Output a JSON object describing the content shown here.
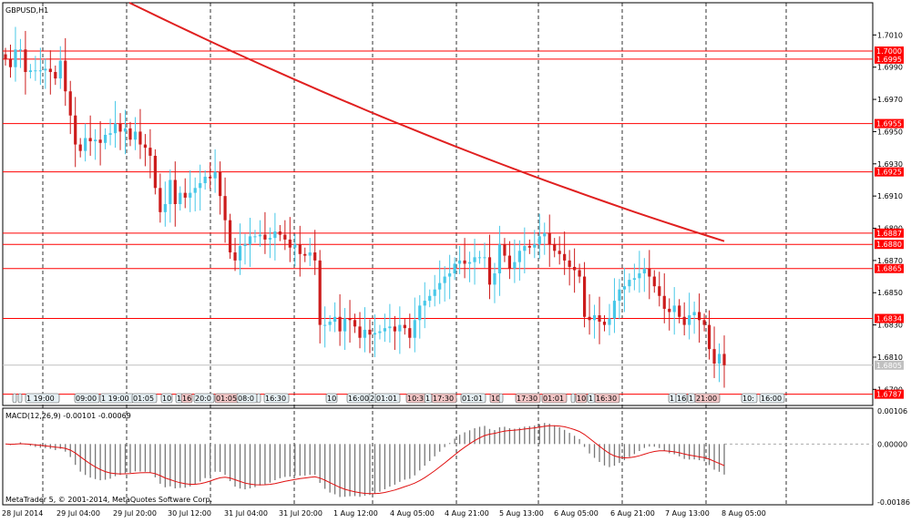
{
  "title": "GBPUSD,H1",
  "copyright": "MetaTrader 5, © 2001-2014, MetaQuotes Software Corp.",
  "chart_data": {
    "type": "candlestick",
    "symbol": "GBPUSD",
    "timeframe": "H1",
    "ylim": [
      1.678,
      1.703
    ],
    "y_ticks": [
      "1.7010",
      "1.6990",
      "1.6970",
      "1.6950",
      "1.6930",
      "1.6910",
      "1.6890",
      "1.6870",
      "1.6850",
      "1.6830",
      "1.6810",
      "1.6790"
    ],
    "x_labels": [
      "28 Jul 2014",
      "29 Jul 04:00",
      "29 Jul 20:00",
      "30 Jul 12:00",
      "31 Jul 04:00",
      "31 Jul 20:00",
      "1 Aug 12:00",
      "4 Aug 05:00",
      "4 Aug 21:00",
      "5 Aug 13:00",
      "6 Aug 05:00",
      "6 Aug 21:00",
      "7 Aug 13:00",
      "8 Aug 05:00"
    ],
    "grid": "vertical dashed",
    "bull_color": "#47c8e8",
    "bear_color": "#cc1c1c",
    "ma_color": "#e02020",
    "level_color": "#ff0000",
    "levels": [
      "1.7000",
      "1.6995",
      "1.6955",
      "1.6925",
      "1.6887",
      "1.6880",
      "1.6865",
      "1.6834",
      "1.6787"
    ],
    "current_price": "1.6805",
    "closes": [
      1.6995,
      1.699,
      1.7001,
      1.7001,
      1.6987,
      1.6988,
      1.6988,
      1.6988,
      1.6989,
      1.6987,
      1.6983,
      1.6994,
      1.6975,
      1.696,
      1.6942,
      1.6938,
      1.6946,
      1.6944,
      1.6945,
      1.6943,
      1.6948,
      1.6949,
      1.6955,
      1.695,
      1.6952,
      1.6945,
      1.695,
      1.6942,
      1.694,
      1.6935,
      1.6915,
      1.69,
      1.6905,
      1.692,
      1.6905,
      1.6912,
      1.6909,
      1.6912,
      1.6915,
      1.6918,
      1.6922,
      1.6921,
      1.6925,
      1.691,
      1.6895,
      1.6875,
      1.687,
      1.6879,
      1.688,
      1.6885,
      1.6885,
      1.6886,
      1.6883,
      1.6884,
      1.6888,
      1.6886,
      1.6883,
      1.6878,
      1.688,
      1.6874,
      1.6873,
      1.6875,
      1.687,
      1.683,
      1.683,
      1.6832,
      1.6835,
      1.6826,
      1.6834,
      1.6833,
      1.6829,
      1.6822,
      1.6827,
      1.6824,
      1.6825,
      1.6826,
      1.6828,
      1.6829,
      1.6826,
      1.683,
      1.6828,
      1.6822,
      1.6833,
      1.6842,
      1.6845,
      1.6848,
      1.6852,
      1.6856,
      1.686,
      1.6862,
      1.6868,
      1.687,
      1.6868,
      1.6869,
      1.6872,
      1.6872,
      1.6872,
      1.6855,
      1.6862,
      1.688,
      1.6873,
      1.6865,
      1.6869,
      1.6876,
      1.6879,
      1.6878,
      1.688,
      1.6885,
      1.6887,
      1.688,
      1.6876,
      1.6874,
      1.687,
      1.6866,
      1.6864,
      1.686,
      1.6835,
      1.6833,
      1.6836,
      1.6832,
      1.683,
      1.6834,
      1.6845,
      1.6852,
      1.6854,
      1.6858,
      1.6859,
      1.6862,
      1.6865,
      1.686,
      1.6854,
      1.6848,
      1.684,
      1.6838,
      1.6842,
      1.6835,
      1.683,
      1.6836,
      1.6838,
      1.6833,
      1.683,
      1.6815,
      1.6806,
      1.6812,
      1.6805
    ],
    "ma_y_range": [
      1.703,
      1.6882
    ],
    "macd": {
      "label": "MACD(12,26,9) -0.00101 -0.00069",
      "ylim": [
        -0.00195,
        0.00115
      ],
      "y_ticks": [
        "0.00106",
        "0.00000",
        "-0.00186"
      ]
    }
  }
}
